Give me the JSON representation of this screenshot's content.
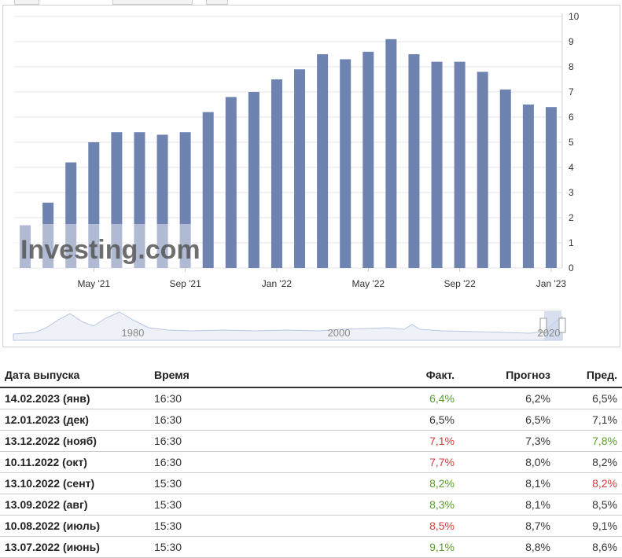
{
  "chart_data": {
    "type": "bar",
    "categories": [
      "2021-02",
      "2021-03",
      "2021-04",
      "2021-05",
      "2021-06",
      "2021-07",
      "2021-08",
      "2021-09",
      "2021-10",
      "2021-11",
      "2021-12",
      "2022-01",
      "2022-02",
      "2022-03",
      "2022-04",
      "2022-05",
      "2022-06",
      "2022-07",
      "2022-08",
      "2022-09",
      "2022-10",
      "2022-11",
      "2022-12",
      "2023-01"
    ],
    "values": [
      1.7,
      2.6,
      4.2,
      5.0,
      5.4,
      5.4,
      5.3,
      5.4,
      6.2,
      6.8,
      7.0,
      7.5,
      7.9,
      8.5,
      8.3,
      8.6,
      9.1,
      8.5,
      8.2,
      8.2,
      7.8,
      7.1,
      6.5,
      6.4
    ],
    "x_tick_labels": [
      "May '21",
      "Sep '21",
      "Jan '22",
      "May '22",
      "Sep '22",
      "Jan '23"
    ],
    "y_ticks": [
      "0",
      "1",
      "2",
      "3",
      "4",
      "5",
      "6",
      "7",
      "8",
      "9",
      "10"
    ],
    "ylim": [
      0,
      10
    ],
    "bar_color": "#6f83b0",
    "grid": true,
    "watermark": "Investing.com",
    "navigator": {
      "labels": [
        "1980",
        "2000",
        "2020"
      ]
    }
  },
  "table": {
    "headers": {
      "date": "Дата выпуска",
      "time": "Время",
      "actual": "Факт.",
      "forecast": "Прогноз",
      "previous": "Пред."
    },
    "rows": [
      {
        "date": "14.02.2023 (янв)",
        "time": "16:30",
        "actual": "6,4%",
        "actual_color": "pos",
        "forecast": "6,2%",
        "previous": "6,5%",
        "previous_color": "neu"
      },
      {
        "date": "12.01.2023 (дек)",
        "time": "16:30",
        "actual": "6,5%",
        "actual_color": "neu",
        "forecast": "6,5%",
        "previous": "7,1%",
        "previous_color": "neu"
      },
      {
        "date": "13.12.2022 (нояб)",
        "time": "16:30",
        "actual": "7,1%",
        "actual_color": "neg",
        "forecast": "7,3%",
        "previous": "7,8%",
        "previous_color": "pos"
      },
      {
        "date": "10.11.2022 (окт)",
        "time": "16:30",
        "actual": "7,7%",
        "actual_color": "neg",
        "forecast": "8,0%",
        "previous": "8,2%",
        "previous_color": "neu"
      },
      {
        "date": "13.10.2022 (сент)",
        "time": "15:30",
        "actual": "8,2%",
        "actual_color": "pos",
        "forecast": "8,1%",
        "previous": "8,2%",
        "previous_color": "neg"
      },
      {
        "date": "13.09.2022 (авг)",
        "time": "15:30",
        "actual": "8,3%",
        "actual_color": "pos",
        "forecast": "8,1%",
        "previous": "8,5%",
        "previous_color": "neu"
      },
      {
        "date": "10.08.2022 (июль)",
        "time": "15:30",
        "actual": "8,5%",
        "actual_color": "neg",
        "forecast": "8,7%",
        "previous": "9,1%",
        "previous_color": "neu"
      },
      {
        "date": "13.07.2022 (июнь)",
        "time": "15:30",
        "actual": "9,1%",
        "actual_color": "pos",
        "forecast": "8,8%",
        "previous": "8,6%",
        "previous_color": "neu"
      }
    ]
  }
}
